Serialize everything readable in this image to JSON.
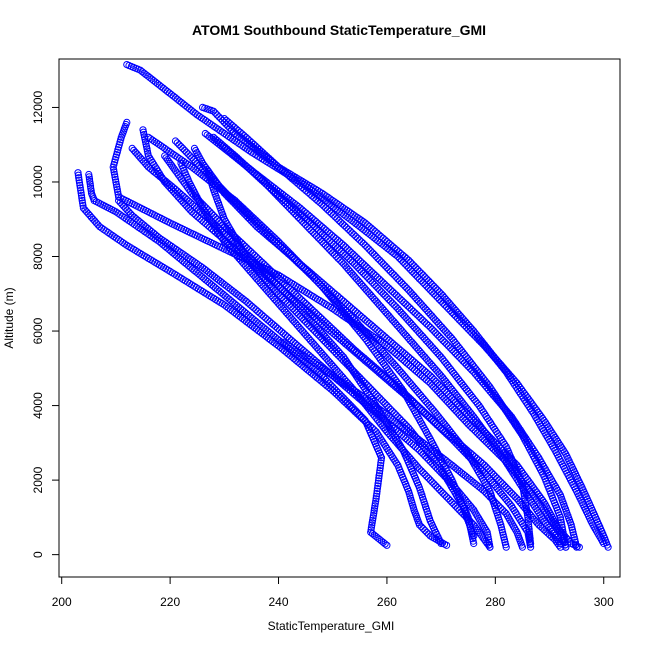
{
  "chart_data": {
    "type": "scatter",
    "title": "ATOM1 Southbound StaticTemperature_GMI",
    "xlabel": "StaticTemperature_GMI",
    "ylabel": "Altitude (m)",
    "xlim": [
      199.5,
      303.0
    ],
    "ylim": [
      -600,
      13300
    ],
    "xticks": [
      200,
      220,
      240,
      260,
      280,
      300
    ],
    "yticks": [
      0,
      2000,
      4000,
      6000,
      8000,
      10000,
      12000
    ],
    "marker": "open-circle",
    "color": "#0000ff",
    "grid": false,
    "series": [
      {
        "profile": 1,
        "x": [
          212.0,
          214.5,
          218.0,
          225.0,
          235.0,
          245.0,
          255.0,
          262.0,
          270.0,
          278.0,
          284.0,
          289.0,
          293.0,
          296.0,
          298.5,
          300.0,
          300.8
        ],
        "y": [
          13150,
          13000,
          12600,
          11800,
          10800,
          9900,
          8800,
          8000,
          6800,
          5600,
          4600,
          3600,
          2700,
          1800,
          1000,
          500,
          200
        ]
      },
      {
        "profile": 2,
        "x": [
          226.0,
          228.0,
          232.0,
          240.0,
          248.0,
          256.0,
          264.0,
          270.0,
          276.0,
          282.0,
          287.0,
          291.0,
          295.0,
          298.0,
          300.0
        ],
        "y": [
          12000,
          11900,
          11300,
          10400,
          9700,
          8900,
          7900,
          7000,
          6000,
          4900,
          3800,
          2800,
          1700,
          800,
          300
        ]
      },
      {
        "profile": 3,
        "x": [
          212.0,
          211.0,
          209.5,
          210.5,
          220.0,
          230.0,
          240.0,
          250.0,
          260.0,
          268.0,
          275.0,
          282.0,
          287.0,
          291.0,
          294.0,
          295.5
        ],
        "y": [
          11600,
          11200,
          10400,
          9600,
          8900,
          8200,
          7500,
          6600,
          5600,
          4600,
          3500,
          2500,
          1600,
          800,
          300,
          200
        ]
      },
      {
        "profile": 4,
        "x": [
          203.0,
          204.0,
          207.0,
          212.0,
          220.0,
          230.0,
          240.0,
          250.0,
          258.0,
          262.0,
          264.0,
          265.0,
          266.0,
          268.0,
          271.0
        ],
        "y": [
          10250,
          9300,
          8800,
          8300,
          7600,
          6700,
          5600,
          4400,
          3300,
          2400,
          1700,
          1200,
          800,
          500,
          250
        ]
      },
      {
        "profile": 5,
        "x": [
          205.0,
          205.5,
          206.0,
          210.0,
          218.0,
          228.0,
          238.0,
          248.0,
          256.0,
          259.0,
          258.0,
          257.0,
          260.0
        ],
        "y": [
          10200,
          9700,
          9500,
          9200,
          8400,
          7200,
          6000,
          4800,
          3600,
          2600,
          1500,
          600,
          250
        ]
      },
      {
        "profile": 6,
        "x": [
          210.5,
          213.0,
          218.0,
          226.0,
          234.0,
          242.0,
          250.0,
          258.0,
          266.0,
          272.0,
          276.0,
          278.5,
          279.0
        ],
        "y": [
          9500,
          9100,
          8500,
          7700,
          6800,
          5800,
          4800,
          3800,
          2800,
          1900,
          1200,
          600,
          200
        ]
      },
      {
        "profile": 7,
        "x": [
          215.0,
          216.0,
          219.0,
          224.0,
          232.0,
          240.0,
          248.0,
          256.0,
          264.0,
          272.0,
          278.0,
          283.0,
          286.0,
          286.5
        ],
        "y": [
          11400,
          10700,
          10000,
          9200,
          8200,
          7200,
          6200,
          5200,
          4200,
          3100,
          2200,
          1300,
          600,
          200
        ]
      },
      {
        "profile": 8,
        "x": [
          219.0,
          221.0,
          224.0,
          230.0,
          238.0,
          246.0,
          254.0,
          262.0,
          270.0,
          278.0,
          284.0,
          288.0,
          291.0,
          292.0
        ],
        "y": [
          10700,
          10300,
          9700,
          8800,
          7700,
          6600,
          5500,
          4500,
          3400,
          2400,
          1500,
          800,
          400,
          200
        ]
      },
      {
        "profile": 9,
        "x": [
          224.5,
          226.0,
          230.0,
          236.0,
          244.0,
          252.0,
          260.0,
          268.0,
          276.0,
          284.0,
          289.0,
          292.0,
          293.0
        ],
        "y": [
          10900,
          10500,
          9700,
          8800,
          7800,
          6800,
          5800,
          4800,
          3600,
          2400,
          1400,
          600,
          200
        ]
      },
      {
        "profile": 10,
        "x": [
          226.5,
          230.0,
          236.0,
          244.0,
          252.0,
          260.0,
          268.0,
          276.0,
          283.0,
          288.0,
          292.0,
          294.0,
          295.0
        ],
        "y": [
          11300,
          10900,
          10200,
          9300,
          8300,
          7200,
          6100,
          4900,
          3700,
          2600,
          1600,
          800,
          200
        ]
      },
      {
        "profile": 11,
        "x": [
          228.0,
          232.0,
          238.0,
          246.0,
          254.0,
          262.0,
          270.0,
          277.0,
          282.0,
          285.0,
          286.0,
          286.5
        ],
        "y": [
          11200,
          10700,
          9900,
          8900,
          7800,
          6600,
          5300,
          4000,
          2900,
          1900,
          1000,
          300
        ]
      },
      {
        "profile": 12,
        "x": [
          222.0,
          223.5,
          226.0,
          230.0,
          236.0,
          242.0,
          248.0,
          254.0,
          260.0,
          266.0,
          272.0,
          276.0,
          278.0,
          279.0
        ],
        "y": [
          10500,
          10000,
          9300,
          8400,
          7400,
          6400,
          5400,
          4400,
          3300,
          2300,
          1400,
          800,
          400,
          200
        ]
      },
      {
        "profile": 13,
        "x": [
          216.0,
          219.0,
          224.0,
          232.0,
          240.0,
          248.0,
          256.0,
          263.0,
          268.0,
          272.0,
          275.0,
          276.0
        ],
        "y": [
          11200,
          10900,
          10400,
          9500,
          8400,
          7200,
          5800,
          4400,
          3100,
          2000,
          1000,
          300
        ]
      },
      {
        "profile": 14,
        "x": [
          213.0,
          216.0,
          221.0,
          228.0,
          236.0,
          244.0,
          252.0,
          258.0,
          263.0,
          266.0,
          268.0,
          270.0
        ],
        "y": [
          10900,
          10400,
          9800,
          8900,
          7800,
          6600,
          5300,
          4000,
          2800,
          1800,
          900,
          300
        ]
      },
      {
        "profile": 15,
        "x": [
          221.0,
          225.0,
          231.0,
          238.0,
          246.0,
          254.0,
          262.0,
          269.0,
          275.0,
          279.0,
          281.0,
          282.0
        ],
        "y": [
          11100,
          10500,
          9600,
          8600,
          7500,
          6300,
          5000,
          3800,
          2700,
          1700,
          800,
          200
        ]
      },
      {
        "profile": 16,
        "x": [
          227.0,
          228.0,
          230.0,
          234.0,
          240.0,
          248.0,
          256.0,
          264.0,
          270.0,
          274.0,
          276.0
        ],
        "y": [
          10300,
          9800,
          9000,
          8000,
          7000,
          5800,
          4600,
          3400,
          2300,
          1300,
          500
        ]
      },
      {
        "profile": 17,
        "x": [
          230.0,
          234.0,
          240.0,
          248.0,
          256.0,
          264.0,
          272.0,
          279.0,
          285.0,
          289.0,
          292.0,
          293.0
        ],
        "y": [
          11700,
          11200,
          10400,
          9400,
          8300,
          7100,
          5800,
          4500,
          3200,
          2100,
          1000,
          200
        ]
      },
      {
        "profile": 18,
        "x": [
          241.0,
          248.0,
          256.0,
          264.0,
          272.0,
          278.0,
          282.0,
          284.0,
          285.0
        ],
        "y": [
          5700,
          5000,
          4200,
          3300,
          2400,
          1700,
          1100,
          600,
          200
        ]
      },
      {
        "profile": 19,
        "x": [
          236.0,
          240.0,
          246.0,
          252.0,
          258.0,
          264.0,
          270.0,
          276.0,
          281.0,
          285.0,
          289.0,
          292.0
        ],
        "y": [
          10200,
          9600,
          8700,
          7800,
          6800,
          5800,
          4800,
          3700,
          2700,
          1800,
          900,
          300
        ]
      }
    ]
  }
}
